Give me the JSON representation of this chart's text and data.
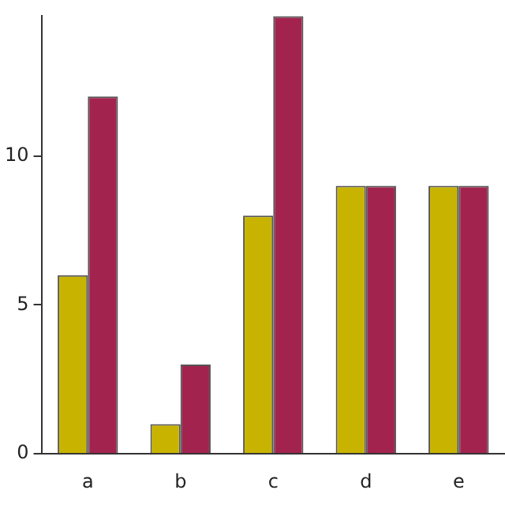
{
  "chart_data": {
    "type": "bar",
    "categories": [
      "a",
      "b",
      "c",
      "d",
      "e"
    ],
    "series": [
      {
        "color": "#c8b400",
        "values": [
          6,
          1,
          8,
          9,
          9
        ]
      },
      {
        "color": "#a3234f",
        "values": [
          12,
          3,
          14.7,
          9,
          9
        ]
      }
    ],
    "ylim": [
      0,
      14.7
    ],
    "yticks": [
      0,
      5,
      10
    ],
    "grid": false,
    "legend": false
  }
}
